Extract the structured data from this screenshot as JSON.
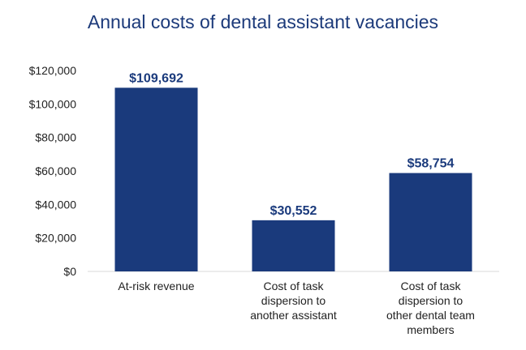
{
  "chart_data": {
    "type": "bar",
    "title": "Annual costs of dental assistant vacancies",
    "xlabel": "",
    "ylabel": "",
    "categories": [
      [
        "At-risk revenue"
      ],
      [
        "Cost of task",
        "dispersion to",
        "another assistant"
      ],
      [
        "Cost of task",
        "dispersion to",
        "other dental team",
        "members"
      ]
    ],
    "values": [
      109692,
      30552,
      58754
    ],
    "data_labels": [
      "$109,692",
      "$30,552",
      "$58,754"
    ],
    "ylim": [
      0,
      120000
    ],
    "yticks": [
      0,
      20000,
      40000,
      60000,
      80000,
      100000,
      120000
    ],
    "ytick_labels": [
      "$0",
      "$20,000",
      "$40,000",
      "$60,000",
      "$80,000",
      "$100,000",
      "$120,000"
    ],
    "grid": false,
    "colors": {
      "bar": "#1a3a7c",
      "label": "#1a3a7c",
      "title": "#1c3a7a",
      "axis_text": "#222222",
      "baseline": "#d9d9d9"
    }
  }
}
